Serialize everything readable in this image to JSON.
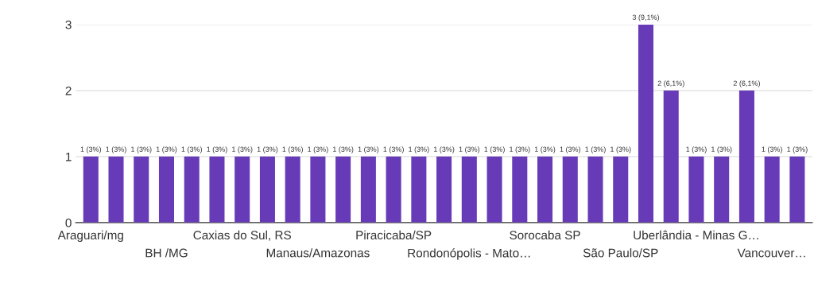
{
  "chart_data": {
    "type": "bar",
    "categories": [
      "Araguari/mg",
      null,
      null,
      "BH /MG",
      null,
      null,
      "Caxias do Sul, RS",
      null,
      null,
      "Manaus/Amazonas",
      null,
      null,
      "Piracicaba/SP",
      null,
      null,
      "Rondonópolis - Mato…",
      null,
      null,
      "Sorocaba SP",
      null,
      null,
      "São Paulo/SP",
      null,
      null,
      "Uberlândia - Minas G…",
      null,
      null,
      "Vancouver…",
      null
    ],
    "values": [
      1,
      1,
      1,
      1,
      1,
      1,
      1,
      1,
      1,
      1,
      1,
      1,
      1,
      1,
      1,
      1,
      1,
      1,
      1,
      1,
      1,
      1,
      3,
      2,
      1,
      1,
      2,
      1,
      1
    ],
    "value_labels": [
      "1 (3%)",
      "1 (3%)",
      "1 (3%)",
      "1 (3%)",
      "1 (3%)",
      "1 (3%)",
      "1 (3%)",
      "1 (3%)",
      "1 (3%)",
      "1 (3%)",
      "1 (3%)",
      "1 (3%)",
      "1 (3%)",
      "1 (3%)",
      "1 (3%)",
      "1 (3%)",
      "1 (3%)",
      "1 (3%)",
      "1 (3%)",
      "1 (3%)",
      "1 (3%)",
      "1 (3%)",
      "3 (9,1%)",
      "2 (6,1%)",
      "1 (3%)",
      "1 (3%)",
      "2 (6,1%)",
      "1 (3%)",
      "1 (3%)"
    ],
    "color": "#673ab7",
    "ylim": [
      0,
      3
    ],
    "yticks": [
      0,
      1,
      2,
      3
    ],
    "grid": "y"
  }
}
